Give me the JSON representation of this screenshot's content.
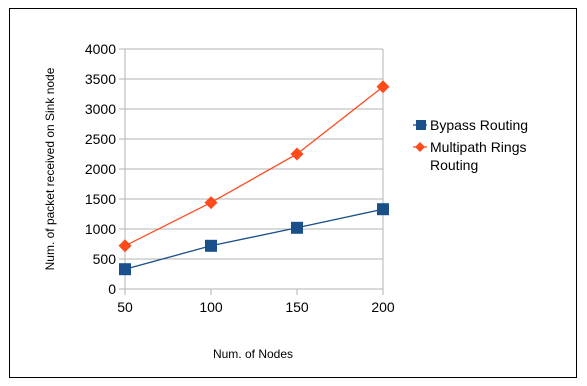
{
  "chart_data": {
    "type": "line",
    "title": "",
    "xlabel": "Num. of Nodes",
    "ylabel": "Num. of packet received on Sink node",
    "x": [
      50,
      100,
      150,
      200
    ],
    "xlim": [
      50,
      200
    ],
    "ylim": [
      0,
      4000
    ],
    "y_ticks": [
      0,
      500,
      1000,
      1500,
      2000,
      2500,
      3000,
      3500,
      4000
    ],
    "x_ticks": [
      50,
      100,
      150,
      200
    ],
    "grid": "horizontal",
    "legend_position": "right",
    "series": [
      {
        "name": "Bypass Routing",
        "values": [
          330,
          720,
          1020,
          1330
        ],
        "color": "#1a4f8a",
        "marker": "square"
      },
      {
        "name": "Multipath Rings Routing",
        "values": [
          720,
          1440,
          2250,
          3370
        ],
        "color": "#ff4a1c",
        "marker": "diamond"
      }
    ]
  }
}
